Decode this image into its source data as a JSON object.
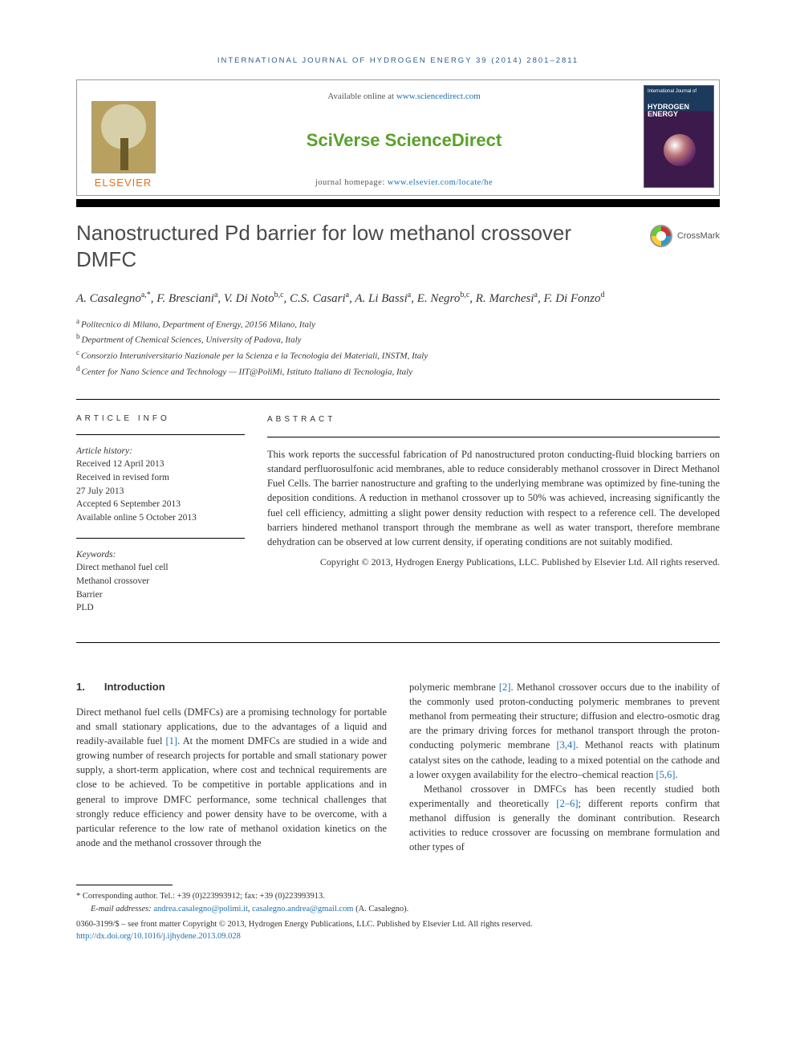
{
  "colors": {
    "link": "#1a6fb3",
    "elsevier_orange": "#e9711c",
    "sd_green": "#7fbf3f",
    "header_blue": "#2c5a8c",
    "text": "#333333",
    "title_grey": "#4a4a4a",
    "rule": "#000000"
  },
  "fonts": {
    "body": "Georgia, 'Times New Roman', serif",
    "sans": "Arial, sans-serif",
    "body_size_pt": 9.5,
    "title_size_pt": 20
  },
  "running_header": "INTERNATIONAL JOURNAL OF HYDROGEN ENERGY 39 (2014) 2801–2811",
  "masthead": {
    "publisher_label": "ELSEVIER",
    "available_prefix": "Available online at ",
    "available_url": "www.sciencedirect.com",
    "platform_logo_text": "SciVerse ScienceDirect",
    "homepage_label": "journal homepage: ",
    "homepage_url": "www.elsevier.com/locate/he",
    "cover": {
      "line1": "International Journal of",
      "line2": "HYDROGEN",
      "line3": "ENERGY"
    }
  },
  "crossmark_label": "CrossMark",
  "title": "Nanostructured Pd barrier for low methanol crossover DMFC",
  "authors_html": "A. Casalegno|a,*|, F. Bresciani|a|, V. Di Noto|b,c|, C.S. Casari|a|, A. Li Bassi|a|, E. Negro|b,c|, R. Marchesi|a|, F. Di Fonzo|d|",
  "authors": [
    {
      "name": "A. Casalegno",
      "sup": "a,*"
    },
    {
      "name": "F. Bresciani",
      "sup": "a"
    },
    {
      "name": "V. Di Noto",
      "sup": "b,c"
    },
    {
      "name": "C.S. Casari",
      "sup": "a"
    },
    {
      "name": "A. Li Bassi",
      "sup": "a"
    },
    {
      "name": "E. Negro",
      "sup": "b,c"
    },
    {
      "name": "R. Marchesi",
      "sup": "a"
    },
    {
      "name": "F. Di Fonzo",
      "sup": "d"
    }
  ],
  "affiliations": [
    {
      "sup": "a",
      "text": "Politecnico di Milano, Department of Energy, 20156 Milano, Italy"
    },
    {
      "sup": "b",
      "text": "Department of Chemical Sciences, University of Padova, Italy"
    },
    {
      "sup": "c",
      "text": "Consorzio Interuniversitario Nazionale per la Scienza e la Tecnologia dei Materiali, INSTM, Italy"
    },
    {
      "sup": "d",
      "text": "Center for Nano Science and Technology — IIT@PoliMi, Istituto Italiano di Tecnologia, Italy"
    }
  ],
  "article_info": {
    "label": "ARTICLE INFO",
    "history_head": "Article history:",
    "history": [
      "Received 12 April 2013",
      "Received in revised form",
      "27 July 2013",
      "Accepted 6 September 2013",
      "Available online 5 October 2013"
    ],
    "keywords_head": "Keywords:",
    "keywords": [
      "Direct methanol fuel cell",
      "Methanol crossover",
      "Barrier",
      "PLD"
    ]
  },
  "abstract": {
    "label": "ABSTRACT",
    "text": "This work reports the successful fabrication of Pd nanostructured proton conducting-fluid blocking barriers on standard perfluorosulfonic acid membranes, able to reduce considerably methanol crossover in Direct Methanol Fuel Cells. The barrier nanostructure and grafting to the underlying membrane was optimized by fine-tuning the deposition conditions. A reduction in methanol crossover up to 50% was achieved, increasing significantly the fuel cell efficiency, admitting a slight power density reduction with respect to a reference cell. The developed barriers hindered methanol transport through the membrane as well as water transport, therefore membrane dehydration can be observed at low current density, if operating conditions are not suitably modified.",
    "copyright": "Copyright © 2013, Hydrogen Energy Publications, LLC. Published by Elsevier Ltd. All rights reserved."
  },
  "section1": {
    "num": "1.",
    "title": "Introduction",
    "col1": "Direct methanol fuel cells (DMFCs) are a promising technology for portable and small stationary applications, due to the advantages of a liquid and readily-available fuel [1]. At the moment DMFCs are studied in a wide and growing number of research projects for portable and small stationary power supply, a short-term application, where cost and technical requirements are close to be achieved. To be competitive in portable applications and in general to improve DMFC performance, some technical challenges that strongly reduce efficiency and power density have to be overcome, with a particular reference to the low rate of methanol oxidation kinetics on the anode and the methanol crossover through the",
    "col2a": "polymeric membrane [2]. Methanol crossover occurs due to the inability of the commonly used proton-conducting polymeric membranes to prevent methanol from permeating their structure; diffusion and electro-osmotic drag are the primary driving forces for methanol transport through the proton-conducting polymeric membrane [3,4]. Methanol reacts with platinum catalyst sites on the cathode, leading to a mixed potential on the cathode and a lower oxygen availability for the electro–chemical reaction [5,6].",
    "col2b": "Methanol crossover in DMFCs has been recently studied both experimentally and theoretically [2–6]; different reports confirm that methanol diffusion is generally the dominant contribution. Research activities to reduce crossover are focussing on membrane formulation and other types of",
    "refs_col1": [
      "[1]"
    ],
    "refs_col2a": [
      "[2]",
      "[3,4]",
      "[5,6]"
    ],
    "refs_col2b": [
      "[2–6]"
    ]
  },
  "footer": {
    "corr_label": "* Corresponding author.",
    "corr_contact": " Tel.: +39 (0)223993912; fax: +39 (0)223993913.",
    "email_label": "E-mail addresses: ",
    "emails": [
      "andrea.casalegno@polimi.it",
      "casalegno.andrea@gmail.com"
    ],
    "email_suffix": " (A. Casalegno).",
    "issn_line": "0360-3199/$ – see front matter Copyright © 2013, Hydrogen Energy Publications, LLC. Published by Elsevier Ltd. All rights reserved.",
    "doi": "http://dx.doi.org/10.1016/j.ijhydene.2013.09.028"
  }
}
